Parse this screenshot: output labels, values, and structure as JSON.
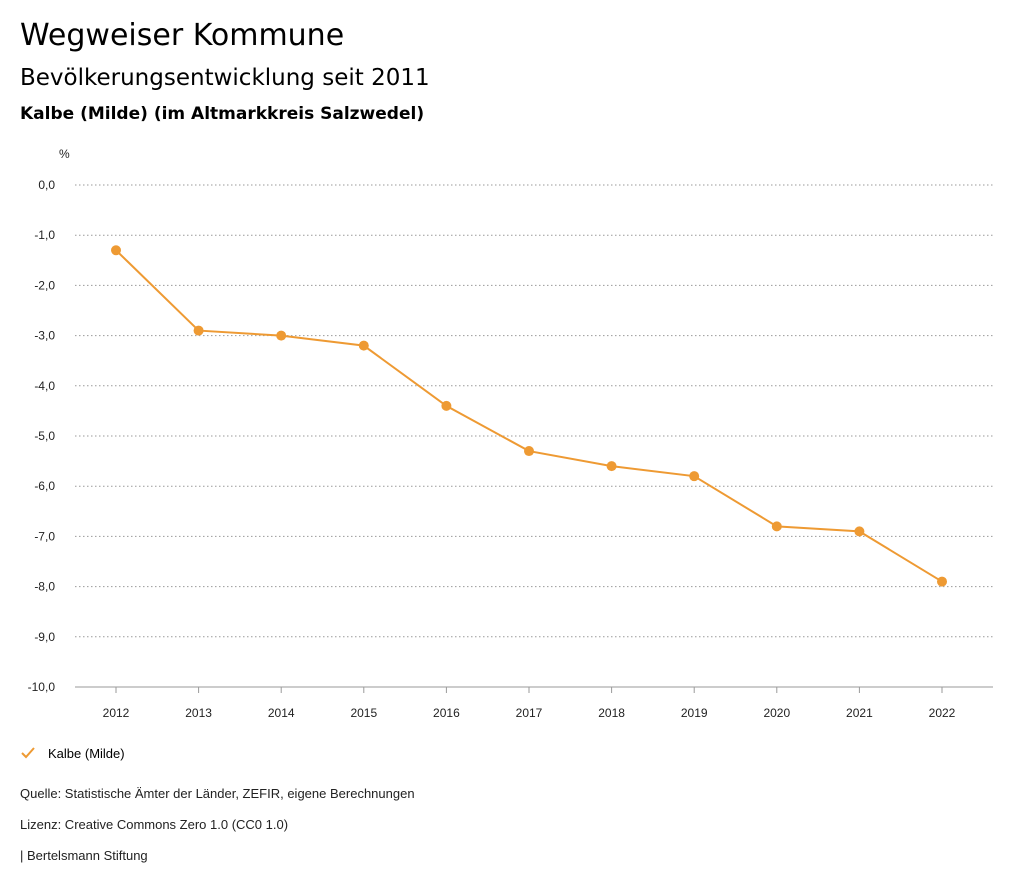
{
  "header": {
    "title": "Wegweiser Kommune",
    "subtitle": "Bevölkerungsentwicklung seit 2011",
    "region": "Kalbe (Milde) (im Altmarkkreis Salzwedel)"
  },
  "chart_data": {
    "type": "line",
    "ylabel": "%",
    "ylim": [
      -10,
      0
    ],
    "y_ticks": [
      0,
      -1,
      -2,
      -3,
      -4,
      -5,
      -6,
      -7,
      -8,
      -9,
      -10
    ],
    "y_tick_labels": [
      "0,0",
      "-1,0",
      "-2,0",
      "-3,0",
      "-4,0",
      "-5,0",
      "-6,0",
      "-7,0",
      "-8,0",
      "-9,0",
      "-10,0"
    ],
    "x": [
      "2012",
      "2013",
      "2014",
      "2015",
      "2016",
      "2017",
      "2018",
      "2019",
      "2020",
      "2021",
      "2022"
    ],
    "grid": true,
    "legend_position": "bottom-left",
    "series": [
      {
        "name": "Kalbe (Milde)",
        "color": "#ee9a33",
        "values": [
          -1.3,
          -2.9,
          -3.0,
          -3.2,
          -4.4,
          -5.3,
          -5.6,
          -5.8,
          -6.8,
          -6.9,
          -7.9
        ]
      }
    ]
  },
  "legend": {
    "icon": "check-icon"
  },
  "footer": {
    "source": "Quelle: Statistische Ämter der Länder, ZEFIR, eigene Berechnungen",
    "license": "Lizenz: Creative Commons Zero 1.0 (CC0 1.0)",
    "publisher": "| Bertelsmann Stiftung"
  }
}
